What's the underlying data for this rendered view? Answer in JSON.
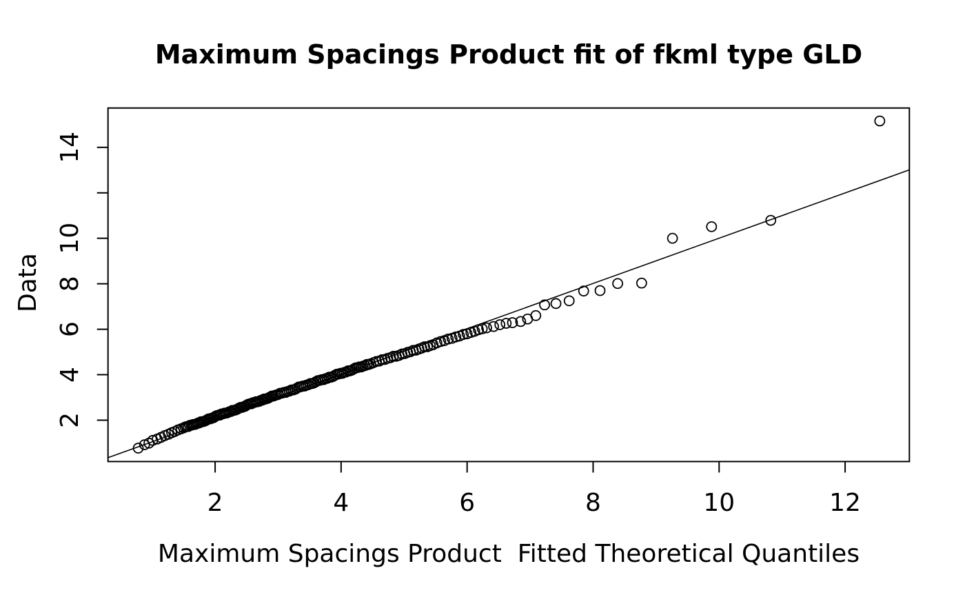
{
  "chart_data": {
    "type": "scatter",
    "title": "Maximum Spacings Product fit of fkml type GLD",
    "xlabel": "Maximum Spacings Product  Fitted Theoretical Quantiles",
    "ylabel": "Data",
    "xlim": [
      0.3,
      13.02
    ],
    "ylim": [
      0.18,
      15.73
    ],
    "x_ticks": [
      2,
      4,
      6,
      8,
      10,
      12
    ],
    "y_ticks": [
      2,
      4,
      6,
      8,
      10,
      12,
      14
    ],
    "y_tick_labels": [
      "2",
      "4",
      "6",
      "8",
      "10",
      "",
      "14"
    ],
    "grid": false,
    "legend": "none",
    "marker": "open-circle",
    "colors": {
      "foreground": "#000000",
      "background": "#ffffff"
    },
    "reference_line": {
      "x1": 0.3,
      "y1": 0.35,
      "x2": 13.02,
      "y2": 13.01
    },
    "points": [
      [
        0.78,
        0.77
      ],
      [
        0.88,
        0.92
      ],
      [
        0.95,
        0.99
      ],
      [
        1.01,
        1.11
      ],
      [
        1.08,
        1.17
      ],
      [
        1.14,
        1.24
      ],
      [
        1.2,
        1.32
      ],
      [
        1.26,
        1.38
      ],
      [
        1.31,
        1.45
      ],
      [
        1.36,
        1.5
      ],
      [
        1.41,
        1.57
      ],
      [
        1.46,
        1.62
      ],
      [
        1.5,
        1.66
      ],
      [
        1.525,
        1.7
      ],
      [
        1.55,
        1.72
      ],
      [
        1.575,
        1.72
      ],
      [
        1.6,
        1.77
      ],
      [
        1.625,
        1.78
      ],
      [
        1.65,
        1.81
      ],
      [
        1.675,
        1.81
      ],
      [
        1.7,
        1.83
      ],
      [
        1.725,
        1.87
      ],
      [
        1.75,
        1.88
      ],
      [
        1.775,
        1.93
      ],
      [
        1.8,
        1.93
      ],
      [
        1.825,
        1.95
      ],
      [
        1.85,
        1.98
      ],
      [
        1.875,
        2.02
      ],
      [
        1.9,
        2.06
      ],
      [
        1.925,
        2.06
      ],
      [
        1.95,
        2.09
      ],
      [
        1.975,
        2.11
      ],
      [
        2.0,
        2.16
      ],
      [
        2.025,
        2.2
      ],
      [
        2.05,
        2.22
      ],
      [
        2.075,
        2.22
      ],
      [
        2.1,
        2.27
      ],
      [
        2.125,
        2.28
      ],
      [
        2.15,
        2.31
      ],
      [
        2.175,
        2.31
      ],
      [
        2.2,
        2.33
      ],
      [
        2.225,
        2.37
      ],
      [
        2.25,
        2.38
      ],
      [
        2.275,
        2.43
      ],
      [
        2.3,
        2.43
      ],
      [
        2.325,
        2.45
      ],
      [
        2.35,
        2.48
      ],
      [
        2.375,
        2.52
      ],
      [
        2.4,
        2.56
      ],
      [
        2.425,
        2.56
      ],
      [
        2.45,
        2.59
      ],
      [
        2.475,
        2.61
      ],
      [
        2.5,
        2.66
      ],
      [
        2.525,
        2.7
      ],
      [
        2.55,
        2.72
      ],
      [
        2.575,
        2.72
      ],
      [
        2.6,
        2.77
      ],
      [
        2.625,
        2.78
      ],
      [
        2.65,
        2.81
      ],
      [
        2.675,
        2.81
      ],
      [
        2.7,
        2.83
      ],
      [
        2.725,
        2.87
      ],
      [
        2.75,
        2.88
      ],
      [
        2.775,
        2.93
      ],
      [
        2.8,
        2.93
      ],
      [
        2.825,
        2.95
      ],
      [
        2.85,
        2.98
      ],
      [
        2.875,
        3.02
      ],
      [
        2.9,
        3.06
      ],
      [
        2.925,
        3.06
      ],
      [
        2.95,
        3.09
      ],
      [
        2.975,
        3.11
      ],
      [
        3.0,
        3.13
      ],
      [
        3.03,
        3.18
      ],
      [
        3.06,
        3.19
      ],
      [
        3.09,
        3.22
      ],
      [
        3.12,
        3.22
      ],
      [
        3.15,
        3.26
      ],
      [
        3.18,
        3.28
      ],
      [
        3.21,
        3.33
      ],
      [
        3.24,
        3.33
      ],
      [
        3.27,
        3.36
      ],
      [
        3.3,
        3.41
      ],
      [
        3.33,
        3.46
      ],
      [
        3.36,
        3.47
      ],
      [
        3.39,
        3.5
      ],
      [
        3.42,
        3.5
      ],
      [
        3.45,
        3.54
      ],
      [
        3.48,
        3.56
      ],
      [
        3.51,
        3.61
      ],
      [
        3.54,
        3.61
      ],
      [
        3.57,
        3.64
      ],
      [
        3.6,
        3.69
      ],
      [
        3.63,
        3.74
      ],
      [
        3.66,
        3.75
      ],
      [
        3.69,
        3.78
      ],
      [
        3.72,
        3.78
      ],
      [
        3.75,
        3.82
      ],
      [
        3.78,
        3.84
      ],
      [
        3.81,
        3.89
      ],
      [
        3.84,
        3.89
      ],
      [
        3.87,
        3.92
      ],
      [
        3.9,
        3.97
      ],
      [
        3.93,
        4.02
      ],
      [
        3.96,
        4.03
      ],
      [
        3.99,
        4.06
      ],
      [
        4.02,
        4.06
      ],
      [
        4.05,
        4.1
      ],
      [
        4.08,
        4.12
      ],
      [
        4.11,
        4.17
      ],
      [
        4.14,
        4.17
      ],
      [
        4.17,
        4.2
      ],
      [
        4.2,
        4.25
      ],
      [
        4.23,
        4.3
      ],
      [
        4.26,
        4.31
      ],
      [
        4.29,
        4.34
      ],
      [
        4.32,
        4.34
      ],
      [
        4.35,
        4.38
      ],
      [
        4.38,
        4.4
      ],
      [
        4.41,
        4.45
      ],
      [
        4.44,
        4.45
      ],
      [
        4.47,
        4.48
      ],
      [
        4.515,
        4.53
      ],
      [
        4.56,
        4.58
      ],
      [
        4.605,
        4.6
      ],
      [
        4.65,
        4.66
      ],
      [
        4.695,
        4.67
      ],
      [
        4.74,
        4.72
      ],
      [
        4.785,
        4.75
      ],
      [
        4.83,
        4.81
      ],
      [
        4.875,
        4.81
      ],
      [
        4.92,
        4.85
      ],
      [
        4.965,
        4.91
      ],
      [
        5.01,
        4.93
      ],
      [
        5.055,
        4.98
      ],
      [
        5.1,
        5.01
      ],
      [
        5.145,
        5.07
      ],
      [
        5.19,
        5.08
      ],
      [
        5.235,
        5.13
      ],
      [
        5.28,
        5.17
      ],
      [
        5.325,
        5.23
      ],
      [
        5.37,
        5.23
      ],
      [
        5.415,
        5.28
      ],
      [
        5.46,
        5.32
      ],
      [
        5.52,
        5.4
      ],
      [
        5.58,
        5.46
      ],
      [
        5.64,
        5.5
      ],
      [
        5.7,
        5.57
      ],
      [
        5.76,
        5.6
      ],
      [
        5.82,
        5.66
      ],
      [
        5.88,
        5.7
      ],
      [
        5.94,
        5.77
      ],
      [
        6.0,
        5.8
      ],
      [
        6.06,
        5.86
      ],
      [
        6.12,
        5.91
      ],
      [
        6.18,
        5.98
      ],
      [
        6.24,
        6.02
      ],
      [
        6.31,
        6.06
      ],
      [
        6.42,
        6.12
      ],
      [
        6.52,
        6.2
      ],
      [
        6.62,
        6.26
      ],
      [
        6.72,
        6.29
      ],
      [
        6.85,
        6.34
      ],
      [
        6.96,
        6.45
      ],
      [
        7.09,
        6.6
      ],
      [
        7.23,
        7.07
      ],
      [
        7.41,
        7.13
      ],
      [
        7.62,
        7.25
      ],
      [
        7.85,
        7.68
      ],
      [
        8.11,
        7.7
      ],
      [
        8.39,
        8.01
      ],
      [
        8.77,
        8.03
      ],
      [
        9.26,
        10.0
      ],
      [
        9.88,
        10.51
      ],
      [
        10.82,
        10.79
      ],
      [
        12.55,
        15.16
      ]
    ]
  }
}
